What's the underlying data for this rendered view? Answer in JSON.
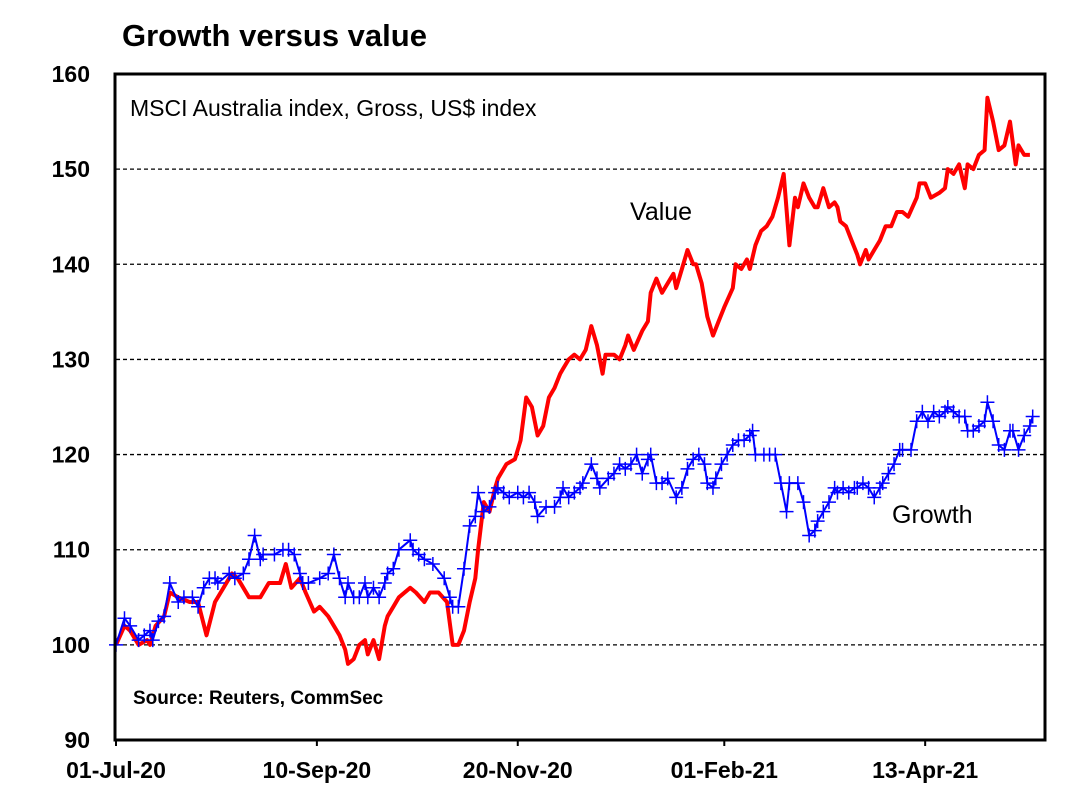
{
  "chart_data": {
    "type": "line",
    "title": "Growth versus value",
    "subtitle": "MSCI Australia index, Gross, US$ index",
    "source": "Source: Reuters, CommSec",
    "xlabel": "",
    "ylabel": "",
    "x_unit": "days since 01-Jul-20",
    "xlim": [
      0,
      328
    ],
    "ylim": [
      90,
      160
    ],
    "yticks": [
      90,
      100,
      110,
      120,
      130,
      140,
      150,
      160
    ],
    "xticks": [
      {
        "day": 0,
        "label": "01-Jul-20"
      },
      {
        "day": 71,
        "label": "10-Sep-20"
      },
      {
        "day": 142,
        "label": "20-Nov-20"
      },
      {
        "day": 215,
        "label": "01-Feb-21"
      },
      {
        "day": 286,
        "label": "13-Apr-21"
      }
    ],
    "grid": "horizontal dashed",
    "series": [
      {
        "name": "Value",
        "color": "#ff0000",
        "marker": "none",
        "points": [
          [
            0,
            100
          ],
          [
            3,
            102
          ],
          [
            5,
            101.5
          ],
          [
            8,
            100
          ],
          [
            11,
            100.5
          ],
          [
            12,
            100
          ],
          [
            14,
            102
          ],
          [
            17,
            103
          ],
          [
            19,
            105.5
          ],
          [
            22,
            105
          ],
          [
            26,
            104.5
          ],
          [
            29,
            104.5
          ],
          [
            32,
            101
          ],
          [
            35,
            104.5
          ],
          [
            38,
            106
          ],
          [
            41,
            107.5
          ],
          [
            43,
            107
          ],
          [
            47,
            105
          ],
          [
            51,
            105
          ],
          [
            54,
            106.5
          ],
          [
            58,
            106.5
          ],
          [
            60,
            108.5
          ],
          [
            62,
            106
          ],
          [
            65,
            107
          ],
          [
            67,
            105.5
          ],
          [
            70,
            103.5
          ],
          [
            72,
            104
          ],
          [
            75,
            103
          ],
          [
            79,
            101
          ],
          [
            81,
            99.5
          ],
          [
            82,
            98
          ],
          [
            84,
            98.5
          ],
          [
            86,
            100
          ],
          [
            88,
            100.5
          ],
          [
            89,
            99
          ],
          [
            91,
            100.5
          ],
          [
            93,
            98.5
          ],
          [
            95,
            102
          ],
          [
            96,
            103
          ],
          [
            98,
            104
          ],
          [
            100,
            105
          ],
          [
            104,
            106
          ],
          [
            106,
            105.5
          ],
          [
            109,
            104.5
          ],
          [
            111,
            105.5
          ],
          [
            114,
            105.5
          ],
          [
            117,
            104.5
          ],
          [
            119,
            100
          ],
          [
            121,
            100
          ],
          [
            123,
            101.5
          ],
          [
            125,
            104.5
          ],
          [
            127,
            107
          ],
          [
            128,
            110
          ],
          [
            130,
            115
          ],
          [
            132,
            114
          ],
          [
            134,
            116.5
          ],
          [
            135,
            117.5
          ],
          [
            138,
            119
          ],
          [
            141,
            119.5
          ],
          [
            143,
            121.5
          ],
          [
            145,
            126
          ],
          [
            147,
            125
          ],
          [
            149,
            122
          ],
          [
            151,
            123
          ],
          [
            153,
            126
          ],
          [
            155,
            127
          ],
          [
            157,
            128.5
          ],
          [
            158,
            129
          ],
          [
            160,
            130
          ],
          [
            162,
            130.5
          ],
          [
            164,
            130
          ],
          [
            166,
            131
          ],
          [
            168,
            133.5
          ],
          [
            170,
            131.5
          ],
          [
            172,
            128.5
          ],
          [
            173,
            130.5
          ],
          [
            176,
            130.5
          ],
          [
            178,
            130
          ],
          [
            180,
            131.5
          ],
          [
            181,
            132.5
          ],
          [
            183,
            131
          ],
          [
            186,
            133
          ],
          [
            188,
            134
          ],
          [
            189,
            137
          ],
          [
            191,
            138.5
          ],
          [
            193,
            137
          ],
          [
            195,
            138
          ],
          [
            197,
            139
          ],
          [
            198,
            137.5
          ],
          [
            200,
            139.5
          ],
          [
            202,
            141.5
          ],
          [
            204,
            140
          ],
          [
            205,
            140
          ],
          [
            207,
            138
          ],
          [
            209,
            134.5
          ],
          [
            211,
            132.5
          ],
          [
            213,
            134
          ],
          [
            215,
            135.5
          ],
          [
            218,
            137.5
          ],
          [
            219,
            140
          ],
          [
            221,
            139.5
          ],
          [
            223,
            140.5
          ],
          [
            224,
            139.5
          ],
          [
            226,
            142
          ],
          [
            228,
            143.5
          ],
          [
            230,
            144
          ],
          [
            232,
            145
          ],
          [
            234,
            147
          ],
          [
            236,
            149.5
          ],
          [
            238,
            142
          ],
          [
            240,
            147
          ],
          [
            241,
            146
          ],
          [
            243,
            148.5
          ],
          [
            245,
            147
          ],
          [
            247,
            146
          ],
          [
            248,
            146
          ],
          [
            250,
            148
          ],
          [
            252,
            146
          ],
          [
            254,
            146.5
          ],
          [
            255,
            146
          ],
          [
            256,
            144.5
          ],
          [
            258,
            144
          ],
          [
            260,
            142.5
          ],
          [
            262,
            141
          ],
          [
            263,
            140
          ],
          [
            265,
            141.5
          ],
          [
            266,
            140.5
          ],
          [
            268,
            141.5
          ],
          [
            270,
            142.5
          ],
          [
            272,
            144
          ],
          [
            274,
            144
          ],
          [
            276,
            145.5
          ],
          [
            278,
            145.5
          ],
          [
            280,
            145
          ],
          [
            283,
            147
          ],
          [
            284,
            148.5
          ],
          [
            286,
            148.5
          ],
          [
            288,
            147
          ],
          [
            291,
            147.5
          ],
          [
            293,
            148
          ],
          [
            294,
            150
          ],
          [
            296,
            149.5
          ],
          [
            298,
            150.5
          ],
          [
            300,
            148
          ],
          [
            301,
            150.5
          ],
          [
            303,
            150
          ],
          [
            305,
            151.5
          ],
          [
            307,
            152
          ],
          [
            308,
            157.5
          ],
          [
            310,
            155
          ],
          [
            312,
            152
          ],
          [
            314,
            152.5
          ],
          [
            316,
            155
          ],
          [
            318,
            150.5
          ],
          [
            319,
            152.5
          ],
          [
            321,
            151.5
          ],
          [
            323,
            151.5
          ]
        ]
      },
      {
        "name": "Growth",
        "color": "#0000ff",
        "marker": "plus",
        "points": [
          [
            0,
            100
          ],
          [
            3,
            102.8
          ],
          [
            5,
            102
          ],
          [
            8,
            100.5
          ],
          [
            10,
            101
          ],
          [
            12,
            101.5
          ],
          [
            13,
            100.5
          ],
          [
            15,
            102.5
          ],
          [
            17,
            103
          ],
          [
            19,
            106.5
          ],
          [
            22,
            104.5
          ],
          [
            24,
            105
          ],
          [
            27,
            105
          ],
          [
            29,
            104
          ],
          [
            31,
            106
          ],
          [
            33,
            107
          ],
          [
            35,
            107
          ],
          [
            36,
            106.5
          ],
          [
            40,
            107.5
          ],
          [
            42,
            107
          ],
          [
            45,
            107.5
          ],
          [
            47,
            109
          ],
          [
            49,
            111.5
          ],
          [
            51,
            109
          ],
          [
            52,
            109.5
          ],
          [
            56,
            109.5
          ],
          [
            59,
            110
          ],
          [
            61,
            110
          ],
          [
            63,
            109.5
          ],
          [
            65,
            107.5
          ],
          [
            66,
            106.5
          ],
          [
            68,
            106.5
          ],
          [
            72,
            107
          ],
          [
            75,
            107.5
          ],
          [
            77,
            109.5
          ],
          [
            79,
            107
          ],
          [
            81,
            105
          ],
          [
            82,
            106.5
          ],
          [
            84,
            105
          ],
          [
            86,
            105
          ],
          [
            88,
            106.5
          ],
          [
            89,
            105
          ],
          [
            91,
            106
          ],
          [
            93,
            105
          ],
          [
            95,
            106.5
          ],
          [
            96,
            107.5
          ],
          [
            98,
            108
          ],
          [
            100,
            110
          ],
          [
            104,
            111
          ],
          [
            105,
            110
          ],
          [
            107,
            109.5
          ],
          [
            109,
            109
          ],
          [
            112,
            108.5
          ],
          [
            116,
            107
          ],
          [
            118,
            105
          ],
          [
            119,
            104
          ],
          [
            121,
            104
          ],
          [
            123,
            108
          ],
          [
            125,
            112.5
          ],
          [
            127,
            113.5
          ],
          [
            128,
            116
          ],
          [
            130,
            114
          ],
          [
            132,
            114.5
          ],
          [
            134,
            116
          ],
          [
            135,
            116.5
          ],
          [
            137,
            116
          ],
          [
            139,
            115.5
          ],
          [
            142,
            116
          ],
          [
            144,
            115.5
          ],
          [
            146,
            116
          ],
          [
            148,
            115
          ],
          [
            149,
            113.5
          ],
          [
            152,
            114.5
          ],
          [
            155,
            114.5
          ],
          [
            157,
            115.5
          ],
          [
            158,
            116.5
          ],
          [
            160,
            115.5
          ],
          [
            162,
            116
          ],
          [
            164,
            116.5
          ],
          [
            165,
            117
          ],
          [
            168,
            119
          ],
          [
            170,
            117.5
          ],
          [
            171,
            116.5
          ],
          [
            174,
            117.5
          ],
          [
            176,
            118
          ],
          [
            178,
            119
          ],
          [
            180,
            118.5
          ],
          [
            182,
            119
          ],
          [
            184,
            120
          ],
          [
            186,
            118
          ],
          [
            188,
            119.5
          ],
          [
            189,
            120
          ],
          [
            191,
            117
          ],
          [
            193,
            117
          ],
          [
            195,
            117.5
          ],
          [
            198,
            115.5
          ],
          [
            200,
            116.5
          ],
          [
            202,
            118.5
          ],
          [
            204,
            119.5
          ],
          [
            206,
            120
          ],
          [
            208,
            119
          ],
          [
            209,
            117
          ],
          [
            211,
            116.5
          ],
          [
            212,
            117.5
          ],
          [
            214,
            119
          ],
          [
            216,
            120
          ],
          [
            218,
            121
          ],
          [
            220,
            121.5
          ],
          [
            222,
            121.5
          ],
          [
            224,
            122
          ],
          [
            225,
            122.5
          ],
          [
            226,
            120
          ],
          [
            229,
            120
          ],
          [
            231,
            120
          ],
          [
            233,
            120
          ],
          [
            235,
            117
          ],
          [
            237,
            114
          ],
          [
            238,
            117
          ],
          [
            241,
            117
          ],
          [
            243,
            115
          ],
          [
            245,
            111.5
          ],
          [
            247,
            112
          ],
          [
            248,
            113
          ],
          [
            250,
            114
          ],
          [
            252,
            115
          ],
          [
            254,
            116.5
          ],
          [
            255,
            116
          ],
          [
            257,
            116.5
          ],
          [
            259,
            116
          ],
          [
            261,
            116.5
          ],
          [
            262,
            116.5
          ],
          [
            264,
            117
          ],
          [
            266,
            116.5
          ],
          [
            268,
            115.5
          ],
          [
            270,
            116.5
          ],
          [
            271,
            117
          ],
          [
            273,
            118
          ],
          [
            275,
            119
          ],
          [
            277,
            120.5
          ],
          [
            278,
            120.5
          ],
          [
            281,
            120.5
          ],
          [
            283,
            123.5
          ],
          [
            285,
            124.5
          ],
          [
            287,
            123.5
          ],
          [
            289,
            124.5
          ],
          [
            291,
            124
          ],
          [
            293,
            124.5
          ],
          [
            294,
            125
          ],
          [
            296,
            124.5
          ],
          [
            298,
            124
          ],
          [
            300,
            124
          ],
          [
            301,
            122.5
          ],
          [
            303,
            122.5
          ],
          [
            305,
            123
          ],
          [
            307,
            123.5
          ],
          [
            308,
            125.5
          ],
          [
            310,
            123.5
          ],
          [
            312,
            121
          ],
          [
            314,
            120.5
          ],
          [
            316,
            122.5
          ],
          [
            317,
            122.5
          ],
          [
            319,
            120.5
          ],
          [
            321,
            122
          ],
          [
            323,
            123
          ],
          [
            324,
            124
          ]
        ]
      }
    ]
  }
}
